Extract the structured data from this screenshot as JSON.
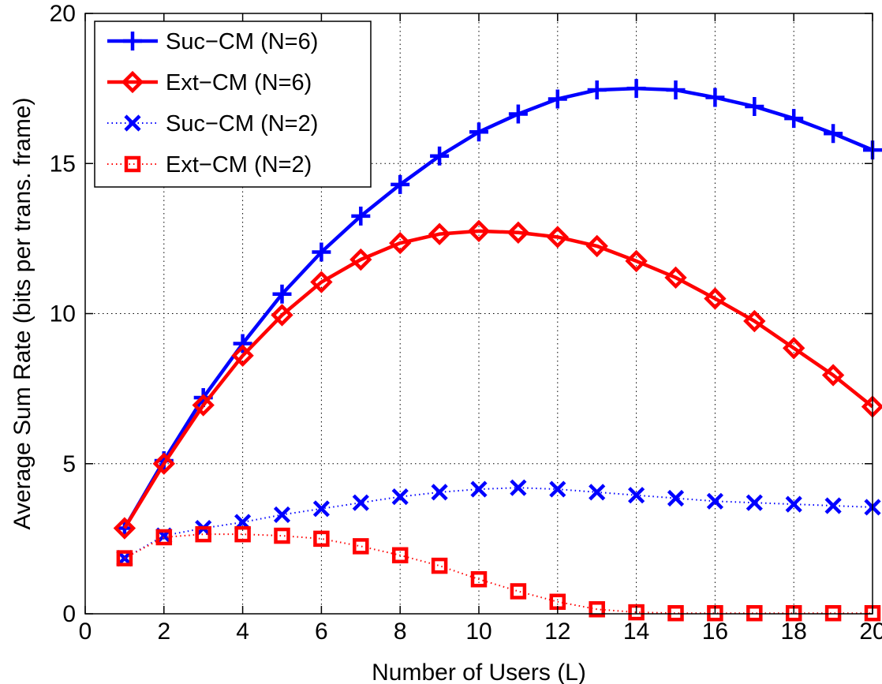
{
  "chart_data": {
    "type": "line",
    "title": "",
    "xlabel": "Number of Users (L)",
    "ylabel": "Average Sum Rate (bits per trans. frame)",
    "xlim": [
      0,
      20
    ],
    "ylim": [
      0,
      20
    ],
    "xticks": [
      0,
      2,
      4,
      6,
      8,
      10,
      12,
      14,
      16,
      18,
      20
    ],
    "yticks": [
      0,
      5,
      10,
      15,
      20
    ],
    "grid": true,
    "legend_position": "top-left",
    "x": [
      1,
      2,
      3,
      4,
      5,
      6,
      7,
      8,
      9,
      10,
      11,
      12,
      13,
      14,
      15,
      16,
      17,
      18,
      19,
      20
    ],
    "series": [
      {
        "name": "Suc−CM (N=6)",
        "color": "#0000ff",
        "marker": "plus",
        "line_style": "solid",
        "values": [
          2.85,
          5.1,
          7.2,
          9.0,
          10.65,
          12.05,
          13.25,
          14.3,
          15.25,
          16.05,
          16.65,
          17.15,
          17.45,
          17.5,
          17.45,
          17.2,
          16.9,
          16.5,
          16.0,
          15.45
        ]
      },
      {
        "name": "Ext−CM (N=6)",
        "color": "#ff0000",
        "marker": "diamond",
        "line_style": "solid",
        "values": [
          2.85,
          5.0,
          6.95,
          8.6,
          9.95,
          11.05,
          11.8,
          12.35,
          12.65,
          12.75,
          12.7,
          12.55,
          12.25,
          11.75,
          11.2,
          10.5,
          9.75,
          8.85,
          7.95,
          6.9
        ]
      },
      {
        "name": "Suc−CM (N=2)",
        "color": "#0000ff",
        "marker": "x",
        "line_style": "dotted",
        "values": [
          1.85,
          2.6,
          2.85,
          3.05,
          3.3,
          3.5,
          3.7,
          3.9,
          4.05,
          4.15,
          4.2,
          4.15,
          4.05,
          3.95,
          3.85,
          3.75,
          3.7,
          3.65,
          3.6,
          3.55
        ]
      },
      {
        "name": "Ext−CM (N=2)",
        "color": "#ff0000",
        "marker": "square",
        "line_style": "dotted",
        "values": [
          1.85,
          2.55,
          2.65,
          2.65,
          2.6,
          2.5,
          2.25,
          1.95,
          1.6,
          1.15,
          0.75,
          0.4,
          0.15,
          0.05,
          0.02,
          0.02,
          0.02,
          0.02,
          0.02,
          0.02
        ]
      }
    ]
  }
}
